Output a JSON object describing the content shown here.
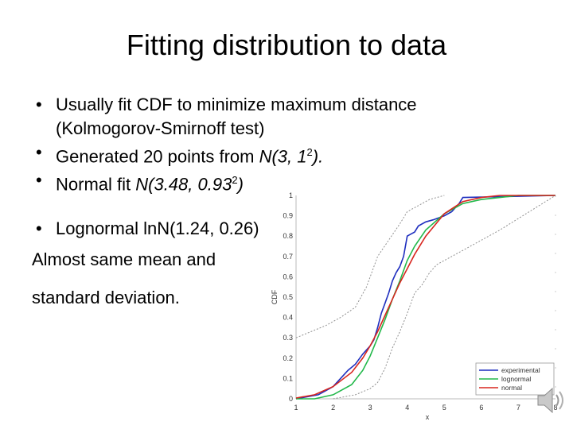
{
  "slide": {
    "title": "Fitting distribution to data",
    "bullet1_line1": "Usually fit CDF to minimize maximum distance",
    "bullet1_line2": "(Kolmogorov-Smirnoff test)",
    "bullet2_prefix": "Generated 20 points from ",
    "bullet2_dist": "N(3, 1",
    "bullet2_sup": "2",
    "bullet2_suffix": ").",
    "bullet3_prefix": "Normal fit ",
    "bullet3_dist": "N(3.48, 0.93",
    "bullet3_sup": "2",
    "bullet3_suffix": ")",
    "bullet4": "Lognormal lnN(1.24, 0.26)",
    "note1": "Almost same mean and",
    "note2": "standard deviation.",
    "bullet_char": "•"
  },
  "chart_data": {
    "type": "line",
    "title": "",
    "xlabel": "x",
    "ylabel": "CDF",
    "xlim": [
      1,
      8
    ],
    "ylim": [
      0,
      1
    ],
    "x_ticks": [
      "1",
      "2",
      "3",
      "4",
      "5",
      "6",
      "7",
      "8"
    ],
    "y_ticks": [
      "0",
      "0.1",
      "0.2",
      "0.3",
      "0.4",
      "0.5",
      "0.6",
      "0.7",
      "0.8",
      "0.9",
      "1"
    ],
    "legend": [
      "experimental",
      "lognormal",
      "normal"
    ],
    "legend_position": "bottom-right",
    "series": [
      {
        "name": "experimental",
        "color": "#1f2fbf",
        "x": [
          1.0,
          1.6,
          1.8,
          2.0,
          2.2,
          2.4,
          2.6,
          2.8,
          3.0,
          3.1,
          3.2,
          3.3,
          3.4,
          3.5,
          3.6,
          3.7,
          3.8,
          3.9,
          4.0,
          4.1,
          4.2,
          4.3,
          4.5,
          4.7,
          5.0,
          5.2,
          5.4,
          5.5,
          8.0
        ],
        "y": [
          0.0,
          0.02,
          0.04,
          0.06,
          0.1,
          0.14,
          0.17,
          0.22,
          0.26,
          0.29,
          0.35,
          0.42,
          0.47,
          0.52,
          0.58,
          0.62,
          0.65,
          0.7,
          0.8,
          0.81,
          0.82,
          0.85,
          0.87,
          0.88,
          0.9,
          0.92,
          0.96,
          0.99,
          1.0
        ]
      },
      {
        "name": "lognormal",
        "color": "#22b84a",
        "x": [
          1.0,
          1.5,
          2.0,
          2.5,
          2.8,
          3.0,
          3.2,
          3.4,
          3.6,
          3.8,
          4.0,
          4.2,
          4.5,
          5.0,
          5.5,
          6.0,
          6.5,
          7.0,
          8.0
        ],
        "y": [
          0.0,
          0.0,
          0.02,
          0.07,
          0.14,
          0.21,
          0.3,
          0.39,
          0.49,
          0.58,
          0.68,
          0.75,
          0.83,
          0.91,
          0.96,
          0.98,
          0.99,
          1.0,
          1.0
        ]
      },
      {
        "name": "normal",
        "color": "#d8261f",
        "x": [
          1.0,
          1.5,
          2.0,
          2.5,
          2.8,
          3.0,
          3.2,
          3.4,
          3.6,
          3.8,
          4.0,
          4.2,
          4.5,
          5.0,
          5.5,
          6.0,
          6.5,
          7.0,
          8.0
        ],
        "y": [
          0.004,
          0.02,
          0.06,
          0.13,
          0.2,
          0.26,
          0.33,
          0.41,
          0.49,
          0.57,
          0.64,
          0.71,
          0.8,
          0.91,
          0.97,
          0.99,
          1.0,
          1.0,
          1.0
        ]
      },
      {
        "name": "confidence-bound-left",
        "color": "#909090",
        "x": [
          2.0,
          2.6,
          3.0,
          3.2,
          3.4,
          3.6,
          3.8,
          4.0,
          4.2,
          4.4,
          4.6,
          4.8,
          5.2,
          5.6,
          6.0,
          6.5,
          8.0
        ],
        "y": [
          0.0,
          0.02,
          0.05,
          0.08,
          0.15,
          0.25,
          0.33,
          0.42,
          0.52,
          0.56,
          0.62,
          0.66,
          0.7,
          0.74,
          0.78,
          0.83,
          1.0
        ]
      },
      {
        "name": "confidence-bound-right",
        "color": "#909090",
        "x": [
          1.0,
          1.4,
          1.8,
          2.2,
          2.6,
          2.9,
          3.2,
          3.5,
          3.8,
          4.0,
          4.3,
          4.6,
          5.0
        ],
        "y": [
          0.3,
          0.33,
          0.36,
          0.4,
          0.45,
          0.55,
          0.7,
          0.78,
          0.86,
          0.92,
          0.95,
          0.98,
          1.0
        ]
      }
    ]
  }
}
